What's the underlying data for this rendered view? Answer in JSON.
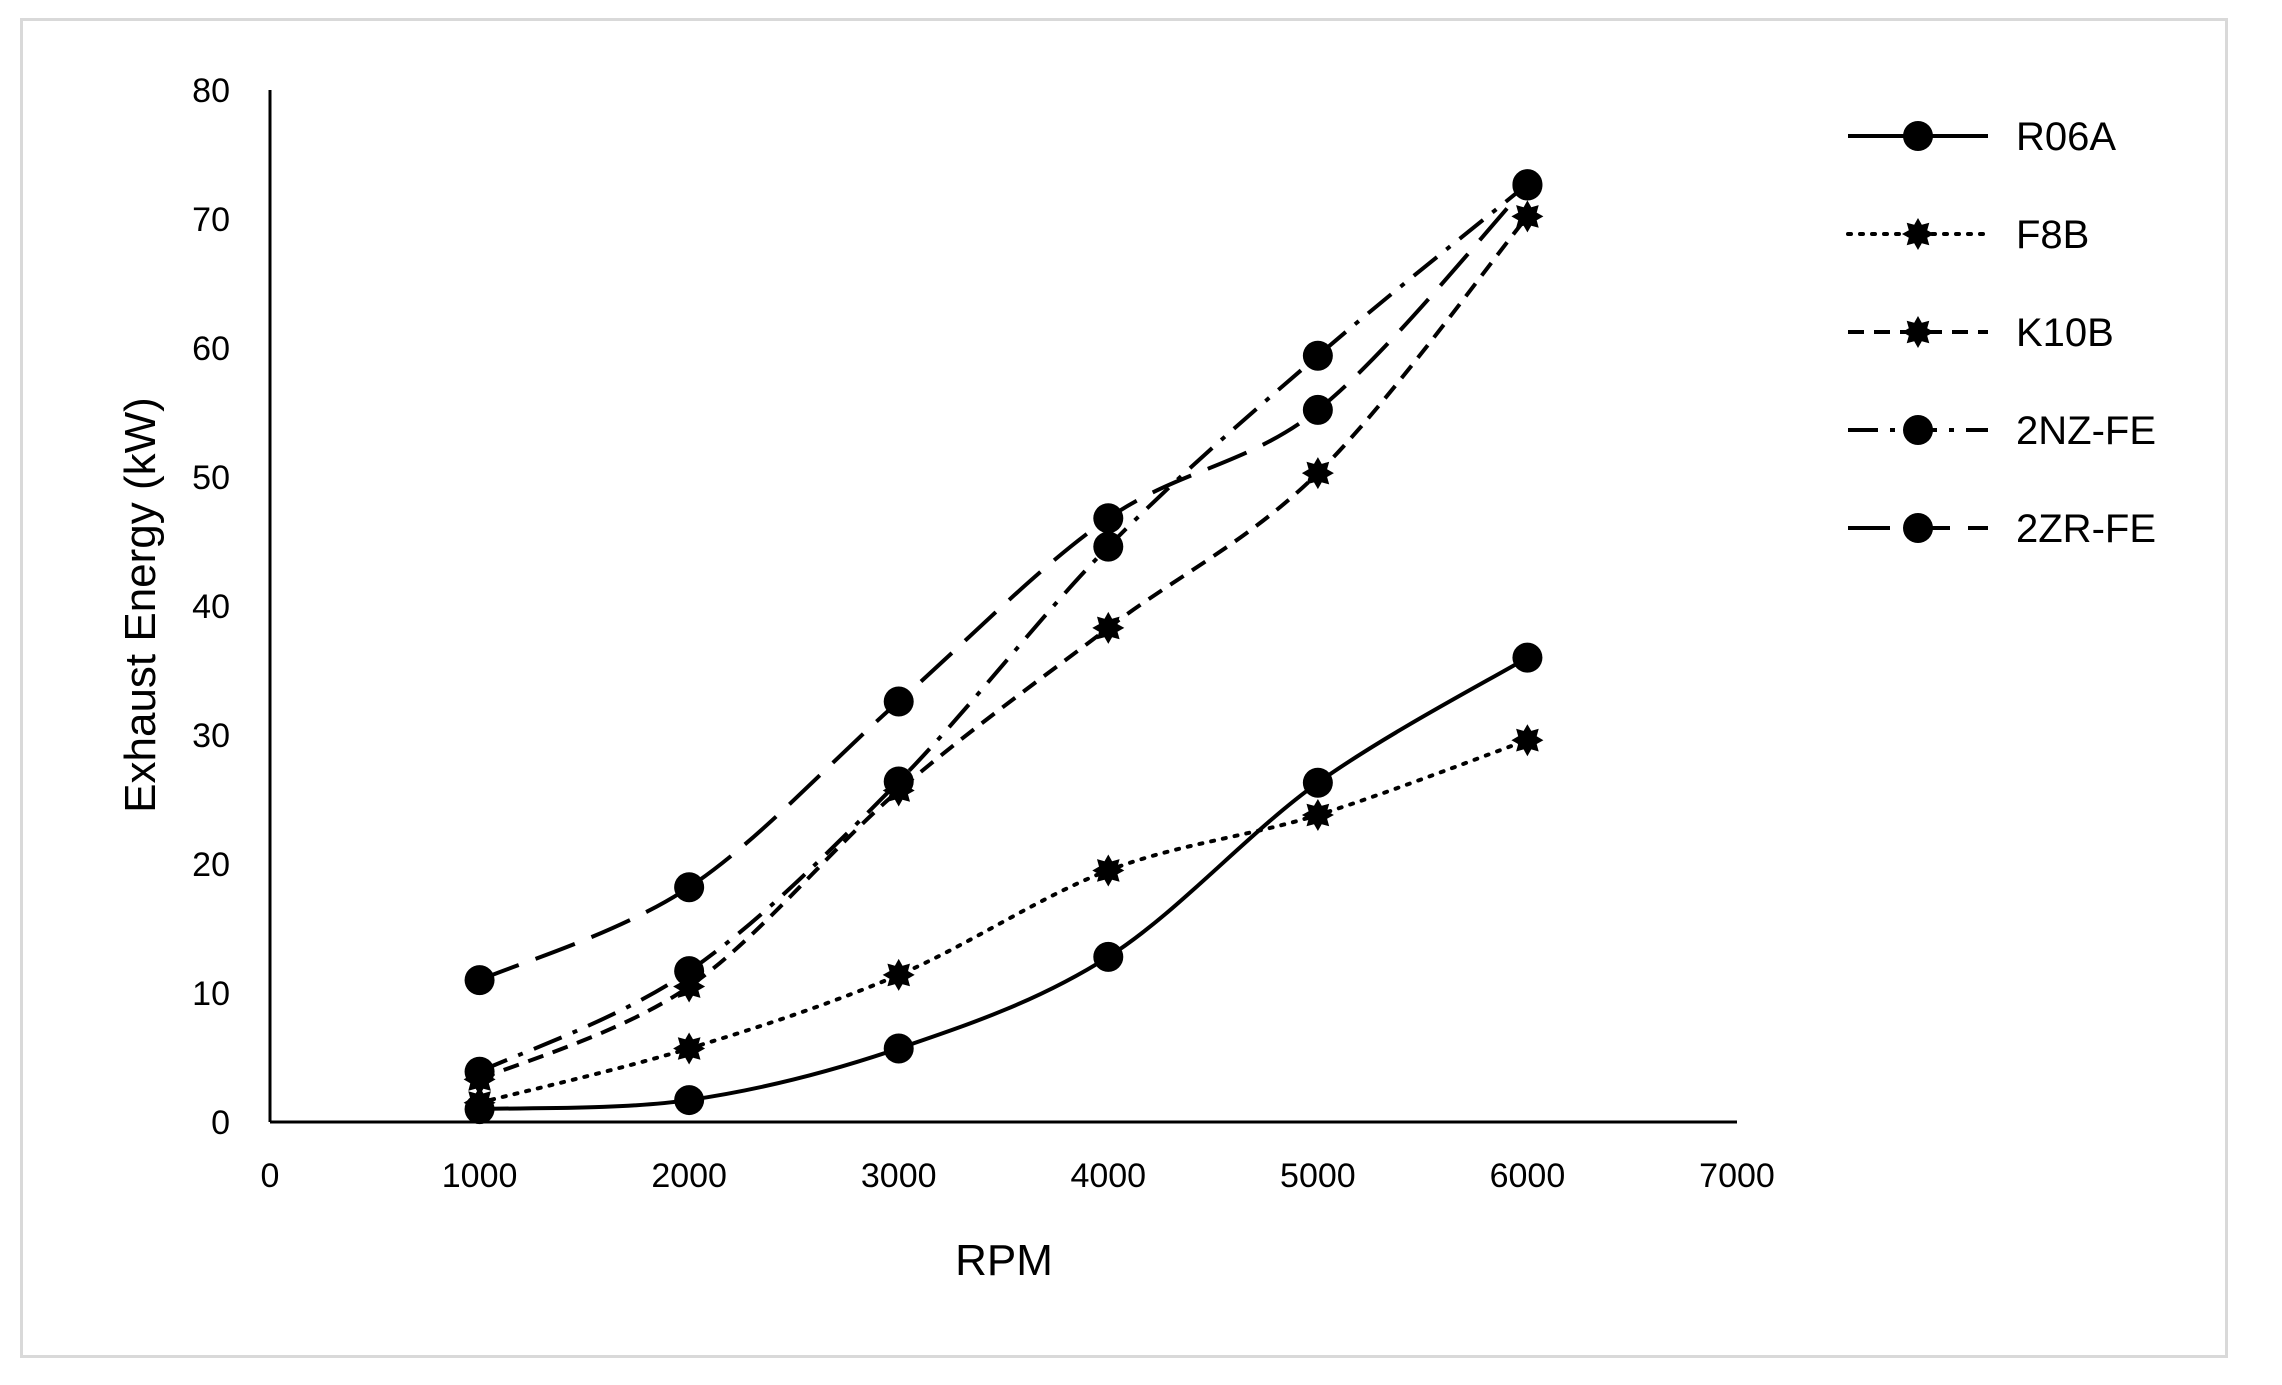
{
  "chart_data": {
    "type": "line",
    "title": "",
    "xlabel": "RPM",
    "ylabel": "Exhaust Energy (kW)",
    "xlim": [
      0,
      7000
    ],
    "ylim": [
      0,
      80
    ],
    "x_ticks": [
      0,
      1000,
      2000,
      3000,
      4000,
      5000,
      6000,
      7000
    ],
    "y_ticks": [
      0,
      10,
      20,
      30,
      40,
      50,
      60,
      70,
      80
    ],
    "grid": false,
    "legend_position": "right",
    "x": [
      1000,
      2000,
      3000,
      4000,
      5000,
      6000
    ],
    "series": [
      {
        "name": "R06A",
        "values": [
          1,
          1.7,
          5.7,
          12.8,
          26.3,
          36
        ],
        "dash": "solid",
        "marker": "circle"
      },
      {
        "name": "F8B",
        "values": [
          1.5,
          5.7,
          11.4,
          19.5,
          23.8,
          29.6
        ],
        "dash": "dotted",
        "marker": "star"
      },
      {
        "name": "K10B",
        "values": [
          3.3,
          10.5,
          25.7,
          38.3,
          50.3,
          70.2
        ],
        "dash": "dashed",
        "marker": "star"
      },
      {
        "name": "2NZ-FE",
        "values": [
          3.9,
          11.7,
          26.4,
          44.6,
          59.4,
          72.7
        ],
        "dash": "dashdot",
        "marker": "circle"
      },
      {
        "name": "2ZR-FE",
        "values": [
          11,
          18.2,
          32.6,
          46.8,
          55.2,
          72.6
        ],
        "dash": "longdash",
        "marker": "circle"
      }
    ],
    "colors": {
      "line": "#000000",
      "axis": "#000000",
      "frame": "#d9d9d9"
    }
  }
}
